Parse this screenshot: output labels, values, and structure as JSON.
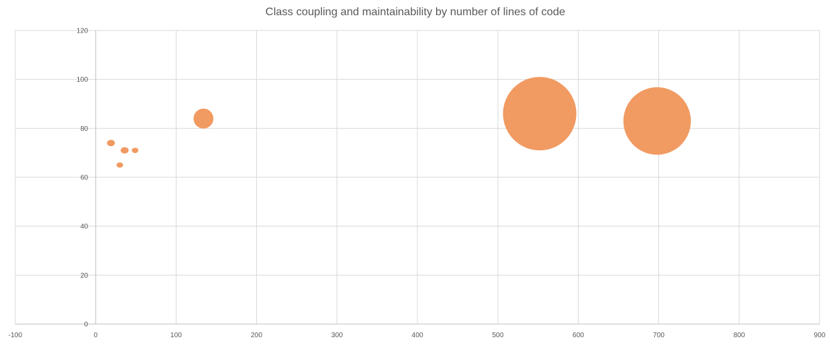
{
  "chart_data": {
    "type": "scatter",
    "title": "Class coupling and maintainability by number of lines of code",
    "xlabel": "",
    "ylabel": "",
    "xlim": [
      -100,
      900
    ],
    "ylim": [
      0,
      120
    ],
    "xticks": [
      -100,
      0,
      100,
      200,
      300,
      400,
      500,
      600,
      700,
      800,
      900
    ],
    "yticks": [
      0,
      20,
      40,
      60,
      80,
      100,
      120
    ],
    "grid": true,
    "legend": "none",
    "bubble_color": "#f0955a",
    "series": [
      {
        "x": [
          19,
          36,
          30,
          49,
          134,
          552,
          698
        ],
        "y": [
          74,
          71,
          65,
          71,
          84,
          86,
          83
        ],
        "size": [
          1.6,
          1.6,
          1.1,
          1.1,
          10,
          136,
          115
        ]
      }
    ]
  }
}
